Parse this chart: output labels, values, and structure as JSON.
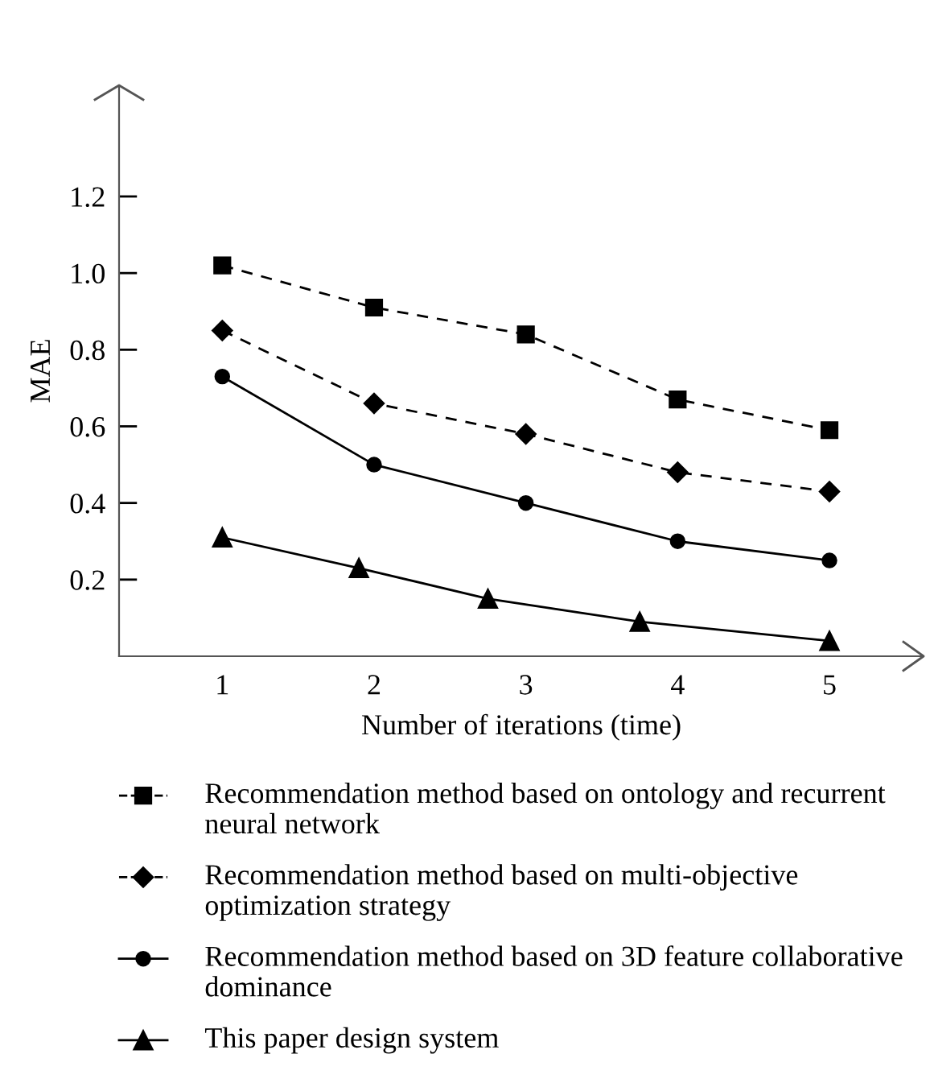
{
  "chart_data": {
    "type": "line",
    "xlabel": "Number of iterations (time)",
    "ylabel": "MAE",
    "xlim": [
      0.32,
      5.62
    ],
    "xticks": [
      1,
      2,
      3,
      4,
      5
    ],
    "ylim": [
      0,
      1.49
    ],
    "yticks": [
      0.2,
      0.4,
      0.6,
      0.8,
      {
        "value": 1.0,
        "label": "1.0"
      },
      1.2
    ],
    "grid": false,
    "legend": "bottom",
    "series": [
      {
        "name": "Recommendation method based on ontology and recurrent neural network",
        "color": "#000000",
        "marker": "square",
        "line_style": "dashed",
        "x": [
          1,
          2,
          3,
          4,
          5
        ],
        "values": [
          1.02,
          0.91,
          0.84,
          0.67,
          0.59
        ]
      },
      {
        "name": "Recommendation method based on multi-objective optimization strategy",
        "color": "#000000",
        "marker": "diamond",
        "line_style": "dashed",
        "x": [
          1,
          2,
          3,
          4,
          5
        ],
        "values": [
          0.85,
          0.66,
          0.58,
          0.48,
          0.43
        ]
      },
      {
        "name": "Recommendation method based on 3D feature collaborative dominance",
        "color": "#000000",
        "marker": "circle",
        "line_style": "solid",
        "x": [
          1,
          2,
          3,
          4,
          5
        ],
        "values": [
          0.73,
          0.5,
          0.4,
          0.3,
          0.25
        ]
      },
      {
        "name": "This paper design system",
        "color": "#000000",
        "marker": "triangle",
        "line_style": "solid",
        "x": [
          1,
          1.9,
          2.75,
          3.75,
          5
        ],
        "values": [
          0.31,
          0.23,
          0.15,
          0.09,
          0.04
        ]
      }
    ]
  }
}
